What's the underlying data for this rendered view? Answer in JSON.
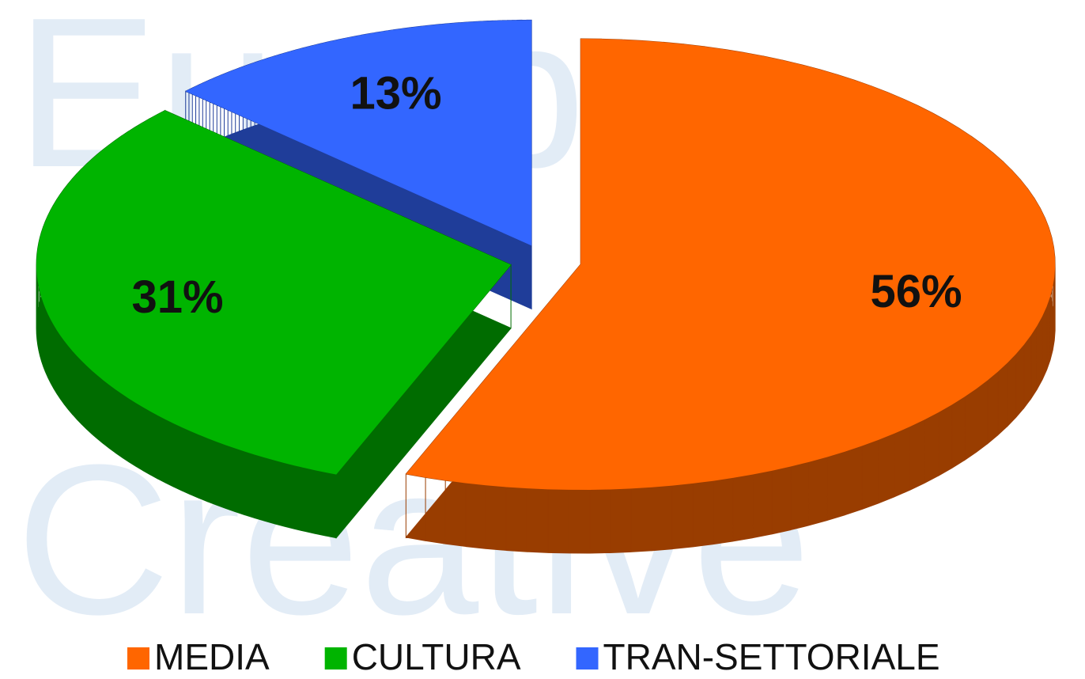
{
  "watermark": [
    "Europe",
    "Creative"
  ],
  "chart_data": {
    "type": "pie",
    "view": "3d-exploded",
    "categories": [
      "MEDIA",
      "CULTURA",
      "TRAN-SETTORIALE"
    ],
    "values": [
      56,
      31,
      13
    ],
    "value_labels": [
      "56%",
      "31%",
      "13%"
    ],
    "colors": [
      "#ff6600",
      "#00b400",
      "#3366ff"
    ],
    "legend": "bottom"
  }
}
